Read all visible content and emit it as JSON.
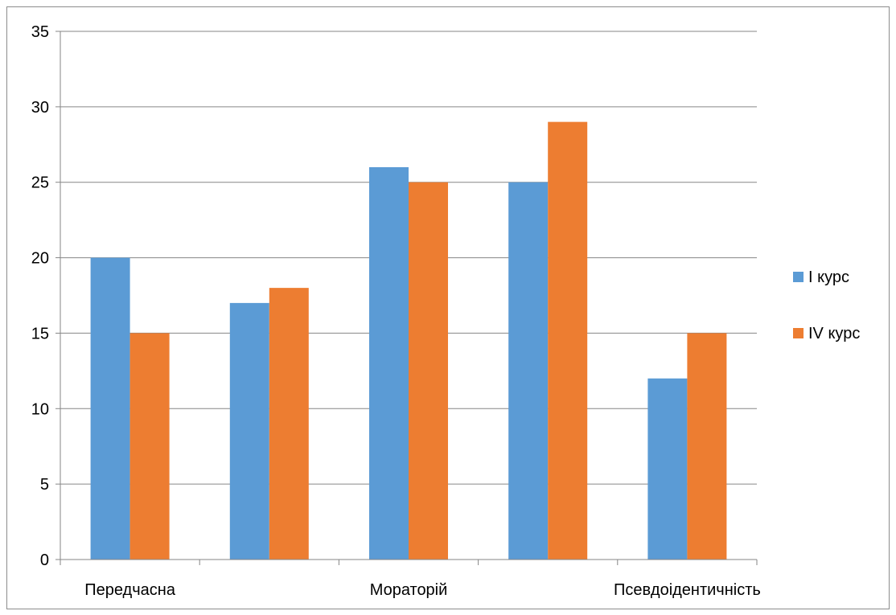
{
  "chart_data": {
    "type": "bar",
    "categories": [
      "Передчасна",
      "",
      "Мораторій",
      "",
      "Псевдоідентичність"
    ],
    "series": [
      {
        "name": "І курс",
        "values": [
          20,
          17,
          26,
          25,
          12
        ],
        "color": "#5b9bd5"
      },
      {
        "name": "ІV курс",
        "values": [
          15,
          18,
          25,
          29,
          15
        ],
        "color": "#ed7d31"
      }
    ],
    "title": "",
    "xlabel": "",
    "ylabel": "",
    "ylim": [
      0,
      35
    ],
    "yticks": [
      "0",
      "5",
      "10",
      "15",
      "20",
      "25",
      "30",
      "35"
    ],
    "grid": true,
    "legend_position": "right"
  },
  "colors": {
    "gridline": "#868686",
    "axis": "#868686"
  }
}
